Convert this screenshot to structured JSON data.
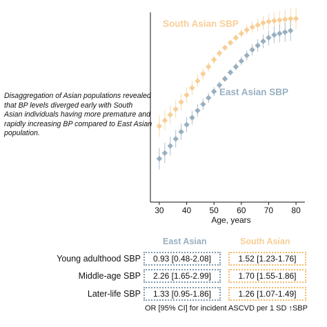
{
  "description": "Disaggregation of Asian populations revealed that BP levels diverged early with South Asian individuals having more premature and rapidly increasing BP compared to East Asian population.",
  "colors": {
    "south_asian": "#f7cf96",
    "east_asian": "#98afc0",
    "axis": "#111111",
    "south_asian_border": "#f2b866",
    "east_asian_border": "#7f98ad"
  },
  "chart_data": {
    "type": "line",
    "xlabel": "Age, years",
    "ylabel": "",
    "xlim": [
      28,
      82
    ],
    "ylim": [
      0,
      1
    ],
    "xticks": [
      30,
      40,
      50,
      60,
      70,
      80
    ],
    "grid": false,
    "series": [
      {
        "name": "South Asian SBP",
        "color": "#f7cf96",
        "x": [
          30,
          32,
          34,
          36,
          38,
          40,
          42,
          44,
          46,
          48,
          50,
          52,
          54,
          56,
          58,
          60,
          62,
          64,
          66,
          68,
          70,
          72,
          74,
          76,
          78,
          80
        ],
        "y": [
          0.23,
          0.27,
          0.31,
          0.35,
          0.4,
          0.45,
          0.5,
          0.55,
          0.6,
          0.65,
          0.7,
          0.745,
          0.785,
          0.82,
          0.855,
          0.885,
          0.91,
          0.93,
          0.945,
          0.96,
          0.97,
          0.975,
          0.98,
          0.985,
          0.99,
          0.99
        ]
      },
      {
        "name": "East Asian SBP",
        "color": "#98afc0",
        "x": [
          30,
          32,
          34,
          36,
          38,
          40,
          42,
          44,
          46,
          48,
          50,
          52,
          54,
          56,
          58,
          60,
          62,
          64,
          66,
          68,
          70,
          72,
          74,
          76,
          78
        ],
        "y": [
          0.0,
          0.04,
          0.09,
          0.14,
          0.19,
          0.24,
          0.29,
          0.34,
          0.385,
          0.43,
          0.475,
          0.52,
          0.565,
          0.61,
          0.65,
          0.69,
          0.73,
          0.77,
          0.8,
          0.83,
          0.855,
          0.875,
          0.885,
          0.895,
          0.905
        ]
      }
    ]
  },
  "table": {
    "col_headers": [
      "East Asian",
      "South Asian"
    ],
    "rows": [
      {
        "label": "Young adulthood SBP",
        "east": "0.93 [0.48-2.08]",
        "south": "1.52 [1.23-1.76]"
      },
      {
        "label": "Middle-age SBP",
        "east": "2.26 [1.65-2.99]",
        "south": "1.70 [1.55-1.86]"
      },
      {
        "label": "Later-life SBP",
        "east": "1.33 [0.95-1.86]",
        "south": "1.26 [1.07-1.49]"
      }
    ],
    "footnote": "OR [95% CI] for incident ASCVD per 1 SD ↑SBP"
  }
}
